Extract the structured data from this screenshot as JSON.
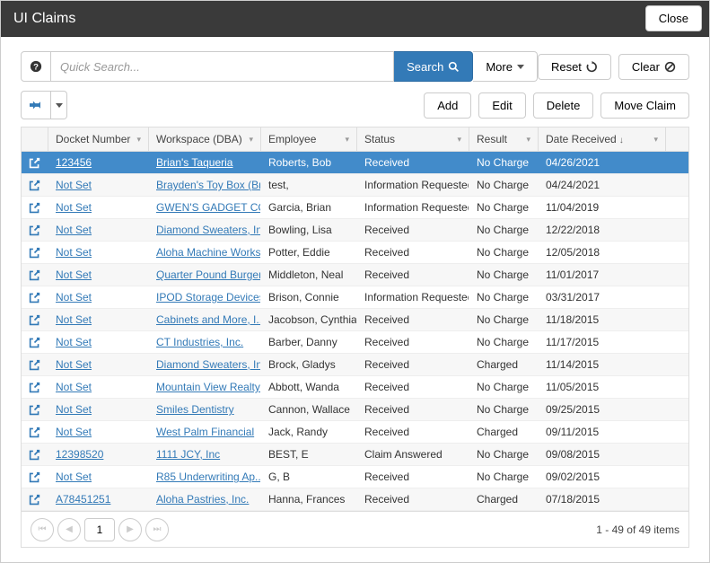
{
  "window": {
    "title": "UI Claims",
    "close_label": "Close"
  },
  "toolbar": {
    "search_placeholder": "Quick Search...",
    "search_label": "Search",
    "more_label": "More",
    "reset_label": "Reset",
    "clear_label": "Clear",
    "add_label": "Add",
    "edit_label": "Edit",
    "delete_label": "Delete",
    "move_label": "Move Claim"
  },
  "columns": {
    "docket": "Docket Number",
    "workspace": "Workspace (DBA)",
    "employee": "Employee",
    "status": "Status",
    "result": "Result",
    "date": "Date Received"
  },
  "rows": [
    {
      "docket": "123456",
      "workspace": "Brian's Taqueria",
      "employee": "Roberts, Bob",
      "status": "Received",
      "result": "No Charge",
      "date": "04/26/2021",
      "selected": true
    },
    {
      "docket": "Not Set",
      "workspace": "Brayden's Toy Box (Br...",
      "employee": "test,",
      "status": "Information Requested",
      "result": "No Charge",
      "date": "04/24/2021"
    },
    {
      "docket": "Not Set",
      "workspace": "GWEN'S GADGET CO...",
      "employee": "Garcia, Brian",
      "status": "Information Requested",
      "result": "No Charge",
      "date": "11/04/2019"
    },
    {
      "docket": "Not Set",
      "workspace": "Diamond Sweaters, In...",
      "employee": "Bowling, Lisa",
      "status": "Received",
      "result": "No Charge",
      "date": "12/22/2018"
    },
    {
      "docket": "Not Set",
      "workspace": "Aloha Machine Works",
      "employee": "Potter, Eddie",
      "status": "Received",
      "result": "No Charge",
      "date": "12/05/2018"
    },
    {
      "docket": "Not Set",
      "workspace": "Quarter Pound Burgers",
      "employee": "Middleton, Neal",
      "status": "Received",
      "result": "No Charge",
      "date": "11/01/2017"
    },
    {
      "docket": "Not Set",
      "workspace": "IPOD Storage Devices...",
      "employee": "Brison, Connie",
      "status": "Information Requested",
      "result": "No Charge",
      "date": "03/31/2017"
    },
    {
      "docket": "Not Set",
      "workspace": "Cabinets and More, I...",
      "employee": "Jacobson, Cynthia",
      "status": "Received",
      "result": "No Charge",
      "date": "11/18/2015"
    },
    {
      "docket": "Not Set",
      "workspace": "CT Industries, Inc.",
      "employee": "Barber, Danny",
      "status": "Received",
      "result": "No Charge",
      "date": "11/17/2015"
    },
    {
      "docket": "Not Set",
      "workspace": "Diamond Sweaters, In...",
      "employee": "Brock, Gladys",
      "status": "Received",
      "result": "Charged",
      "date": "11/14/2015"
    },
    {
      "docket": "Not Set",
      "workspace": "Mountain View Realty...",
      "employee": "Abbott, Wanda",
      "status": "Received",
      "result": "No Charge",
      "date": "11/05/2015"
    },
    {
      "docket": "Not Set",
      "workspace": "Smiles Dentistry",
      "employee": "Cannon, Wallace",
      "status": "Received",
      "result": "No Charge",
      "date": "09/25/2015"
    },
    {
      "docket": "Not Set",
      "workspace": "West Palm Financial",
      "employee": "Jack, Randy",
      "status": "Received",
      "result": "Charged",
      "date": "09/11/2015"
    },
    {
      "docket": "12398520",
      "workspace": "1111 JCY, Inc",
      "employee": "BEST, E",
      "status": "Claim Answered",
      "result": "No Charge",
      "date": "09/08/2015"
    },
    {
      "docket": "Not Set",
      "workspace": "R85 Underwriting Ap...",
      "employee": "G, B",
      "status": "Received",
      "result": "No Charge",
      "date": "09/02/2015"
    },
    {
      "docket": "A78451251",
      "workspace": "Aloha Pastries, Inc.",
      "employee": "Hanna, Frances",
      "status": "Received",
      "result": "Charged",
      "date": "07/18/2015"
    }
  ],
  "footer": {
    "page": "1",
    "items": "1 - 49 of 49 items"
  }
}
